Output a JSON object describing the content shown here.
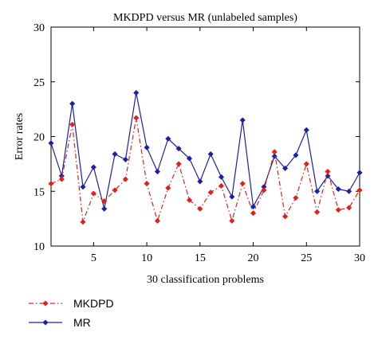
{
  "chart_data": {
    "type": "line",
    "title": "MKDPD versus MR (unlabeled samples)",
    "xlabel": "30 classification problems",
    "ylabel": "Error rates",
    "xlim": [
      1,
      30
    ],
    "ylim": [
      10,
      30
    ],
    "xticks": [
      5,
      10,
      15,
      20,
      25,
      30
    ],
    "yticks": [
      10,
      15,
      20,
      25,
      30
    ],
    "grid": false,
    "legend_position": "bottom-left",
    "x": [
      1,
      2,
      3,
      4,
      5,
      6,
      7,
      8,
      9,
      10,
      11,
      12,
      13,
      14,
      15,
      16,
      17,
      18,
      19,
      20,
      21,
      22,
      23,
      24,
      25,
      26,
      27,
      28,
      29,
      30
    ],
    "series": [
      {
        "name": "MKDPD",
        "color": "#e0211b",
        "line_style": "dash-dot",
        "marker": "diamond",
        "values": [
          15.7,
          16.1,
          21.1,
          12.2,
          14.8,
          14.1,
          15.1,
          16.1,
          21.7,
          15.7,
          12.3,
          15.3,
          17.5,
          14.2,
          13.4,
          14.9,
          15.5,
          12.3,
          15.7,
          13.0,
          15.1,
          18.6,
          12.7,
          14.4,
          17.5,
          13.1,
          16.8,
          13.3,
          13.5,
          15.1
        ]
      },
      {
        "name": "MR",
        "color": "#1c20a4",
        "line_style": "solid",
        "marker": "diamond",
        "values": [
          19.4,
          16.4,
          23.0,
          15.4,
          17.2,
          13.4,
          18.4,
          17.9,
          24.0,
          19.0,
          16.8,
          19.8,
          18.9,
          18.0,
          15.9,
          18.4,
          16.3,
          14.5,
          21.5,
          13.6,
          15.4,
          18.2,
          17.1,
          18.3,
          20.6,
          15.0,
          16.4,
          15.2,
          15.0,
          16.7
        ]
      }
    ]
  }
}
